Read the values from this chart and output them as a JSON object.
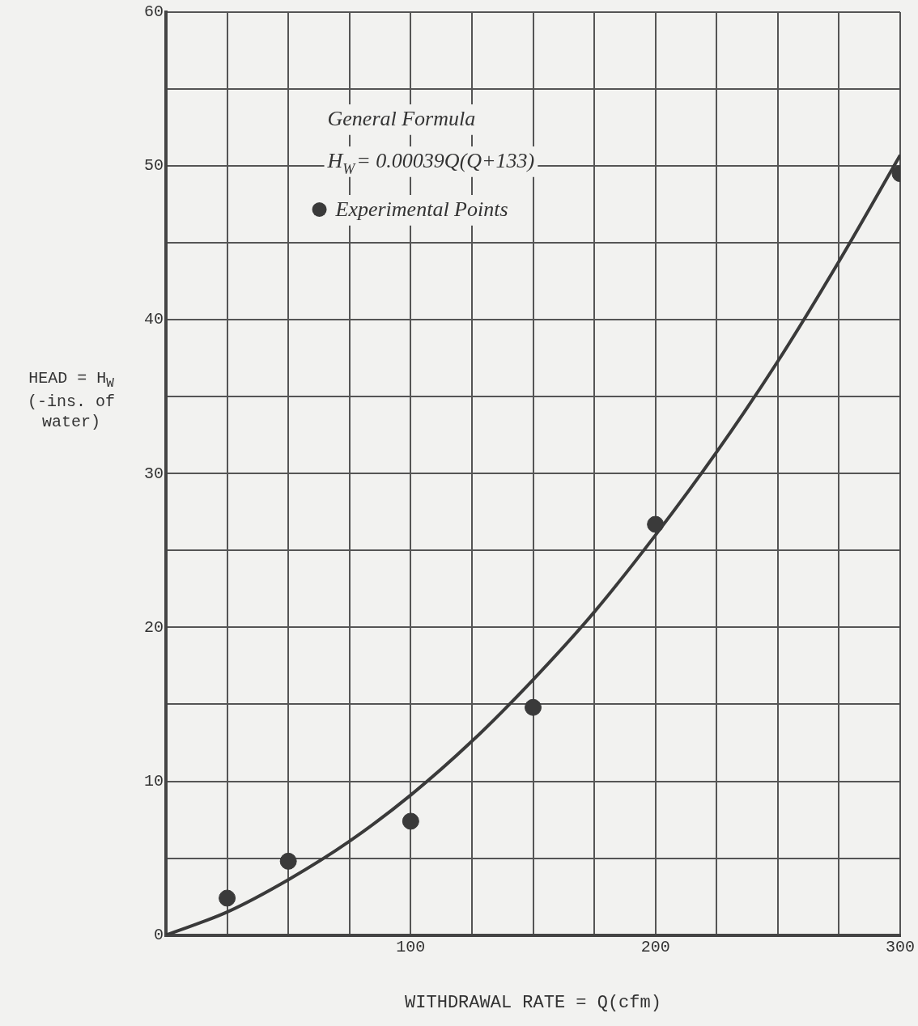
{
  "chart_data": {
    "type": "scatter",
    "xlabel": "WITHDRAWAL RATE = Q(cfm)",
    "ylabel": "HEAD = H$_{W}$ (-ins. of water)",
    "annotations": [
      "General Formula",
      "H$_{W}$= 0.00039Q(Q+133)"
    ],
    "series": [
      {
        "name": "Experimental Points",
        "color": "#3a3a3a",
        "marker": "circle",
        "x": [
          25,
          50,
          100,
          150,
          200,
          300
        ],
        "values": [
          2.4,
          4.8,
          7.4,
          14.8,
          26.7,
          49.5
        ]
      },
      {
        "type": "line",
        "color": "#3a3a3a",
        "marker": "none",
        "line_style": "solid",
        "x": [
          0,
          25,
          50,
          75,
          100,
          125,
          150,
          175,
          200,
          225,
          250,
          275,
          300
        ],
        "values": [
          0,
          1.5,
          3.6,
          6.1,
          9.1,
          12.6,
          16.6,
          21.0,
          26.0,
          31.4,
          37.3,
          43.8,
          50.7
        ]
      }
    ],
    "xlim": [
      0,
      300
    ],
    "xticks": [
      {
        "value": 0,
        "label": null
      },
      {
        "value": 25,
        "label": null
      },
      {
        "value": 50,
        "label": null
      },
      {
        "value": 75,
        "label": null
      },
      100,
      {
        "value": 125,
        "label": null
      },
      {
        "value": 150,
        "label": null
      },
      {
        "value": 175,
        "label": null
      },
      200,
      {
        "value": 225,
        "label": null
      },
      {
        "value": 250,
        "label": null
      },
      {
        "value": 275,
        "label": null
      },
      300
    ],
    "ylim": [
      0,
      60
    ],
    "yticks": [
      0,
      {
        "value": 5,
        "label": null
      },
      10,
      {
        "value": 15,
        "label": null
      },
      20,
      {
        "value": 25,
        "label": null
      },
      30,
      {
        "value": 35,
        "label": null
      },
      40,
      {
        "value": 45,
        "label": null
      },
      50,
      {
        "value": 55,
        "label": null
      },
      60
    ],
    "grid": true,
    "legend": "top left"
  }
}
